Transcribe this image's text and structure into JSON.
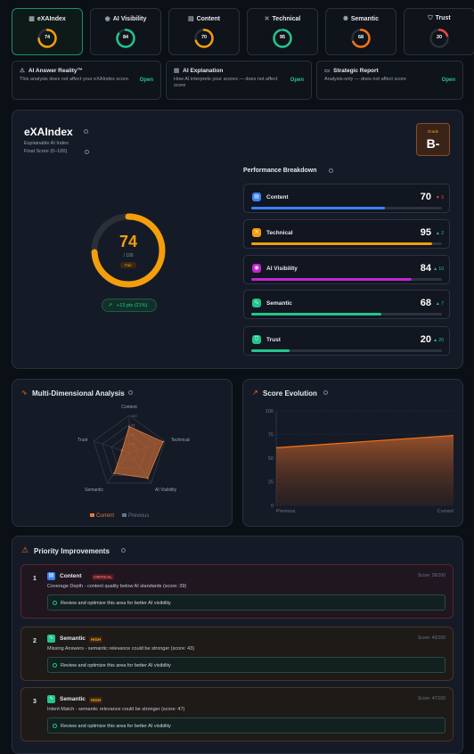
{
  "tabs": [
    {
      "label": "eXAIndex",
      "value": "74",
      "color": "#f59e0b",
      "pct": 0.74,
      "icon": "grid-icon",
      "active": true
    },
    {
      "label": "AI Visibility",
      "value": "84",
      "color": "#22c58b",
      "pct": 0.84,
      "icon": "eye-icon",
      "active": false
    },
    {
      "label": "Content",
      "value": "70",
      "color": "#f59e0b",
      "pct": 0.7,
      "icon": "document-icon",
      "active": false
    },
    {
      "label": "Technical",
      "value": "95",
      "color": "#22c58b",
      "pct": 0.95,
      "icon": "wrench-icon",
      "active": false
    },
    {
      "label": "Semantic",
      "value": "68",
      "color": "#f97316",
      "pct": 0.68,
      "icon": "sparkle-icon",
      "active": false
    },
    {
      "label": "Trust",
      "value": "20",
      "color": "#ef4444",
      "pct": 0.2,
      "icon": "shield-icon",
      "active": false
    }
  ],
  "info_cards": [
    {
      "title": "AI Answer Reality™",
      "desc": "This analysis does not affect your eXAIndex score.",
      "action": "Open",
      "icon": "alert-icon"
    },
    {
      "title": "AI Explanation",
      "desc": "How AI interprets your scores — does not affect score",
      "action": "Open",
      "icon": "document-icon"
    },
    {
      "title": "Strategic Report",
      "desc": "Analysis-only — does not affect score",
      "action": "Open",
      "icon": "monitor-icon"
    }
  ],
  "main": {
    "title": "eXAIndex",
    "subtitle": "Explainable AI Index",
    "final_label": "Final Score (0–100)",
    "score": "74",
    "score_pct": 0.74,
    "out_of": "/ 100",
    "rating": "Fair",
    "delta": "+13 pts (21%)",
    "grade_label": "Grade",
    "grade": "B-",
    "breakdown_title": "Performance Breakdown",
    "metrics": [
      {
        "label": "Content",
        "value": "70",
        "delta": "▼ 9",
        "delta_color": "#ef4444",
        "pct": 0.7,
        "color": "#3b82f6",
        "icon": "document-icon"
      },
      {
        "label": "Technical",
        "value": "95",
        "delta": "▲ 2",
        "delta_color": "#22c58b",
        "pct": 0.95,
        "color": "#f59e0b",
        "icon": "wrench-icon"
      },
      {
        "label": "AI Visibility",
        "value": "84",
        "delta": "▲ 10",
        "delta_color": "#22c58b",
        "pct": 0.84,
        "color": "#c026d3",
        "icon": "eye-icon"
      },
      {
        "label": "Semantic",
        "value": "68",
        "delta": "▲ 7",
        "delta_color": "#22c58b",
        "pct": 0.68,
        "color": "#22c58b",
        "icon": "pulse-icon"
      },
      {
        "label": "Trust",
        "value": "20",
        "delta": "▲ 20",
        "delta_color": "#22c58b",
        "pct": 0.2,
        "color": "#22c58b",
        "icon": "shield-icon"
      }
    ]
  },
  "radar": {
    "title": "Multi-Dimensional Analysis",
    "axes": [
      "Content",
      "Technical",
      "AI Visibility",
      "Semantic",
      "Trust"
    ],
    "current": [
      70,
      95,
      84,
      68,
      20
    ],
    "legend_current": "Current",
    "legend_previous": "Previous",
    "ticks": [
      "100",
      "75",
      "50",
      "25"
    ]
  },
  "evolution": {
    "title": "Score Evolution",
    "y_ticks": [
      "100",
      "75",
      "50",
      "25",
      "0"
    ],
    "x_labels": [
      "Previous",
      "Current"
    ]
  },
  "chart_data": [
    {
      "type": "radar",
      "title": "Multi-Dimensional Analysis",
      "categories": [
        "Content",
        "Technical",
        "AI Visibility",
        "Semantic",
        "Trust"
      ],
      "series": [
        {
          "name": "Current",
          "values": [
            70,
            95,
            84,
            68,
            20
          ]
        }
      ],
      "ylim": [
        0,
        100
      ]
    },
    {
      "type": "area",
      "title": "Score Evolution",
      "categories": [
        "Previous",
        "Current"
      ],
      "values": [
        61,
        74
      ],
      "ylim": [
        0,
        100
      ]
    }
  ],
  "priority": {
    "title": "Priority Improvements",
    "items": [
      {
        "num": "1",
        "category": "Content",
        "tag": "CRITICAL",
        "score": "Score: 39/100",
        "desc": "Coverage Depth - content quality below AI standards (score: 39)",
        "action": "Review and optimize this area for better AI visibility",
        "color": "#3b82f6",
        "bg": "#1f1620",
        "border": "#5a2630",
        "tag_bg": "#4a1a20",
        "tag_color": "#f87171"
      },
      {
        "num": "2",
        "category": "Semantic",
        "tag": "HIGH",
        "score": "Score: 43/100",
        "desc": "Missing Answers - semantic relevance could be stronger (score: 43)",
        "action": "Review and optimize this area for better AI visibility",
        "color": "#22c58b",
        "bg": "#1e1a18",
        "border": "#4a3422",
        "tag_bg": "#3a2814",
        "tag_color": "#f59e0b"
      },
      {
        "num": "3",
        "category": "Semantic",
        "tag": "HIGH",
        "score": "Score: 47/100",
        "desc": "Intent Match - semantic relevance could be stronger (score: 47)",
        "action": "Review and optimize this area for better AI visibility",
        "color": "#22c58b",
        "bg": "#1e1a18",
        "border": "#4a3422",
        "tag_bg": "#3a2814",
        "tag_color": "#f59e0b"
      }
    ]
  }
}
